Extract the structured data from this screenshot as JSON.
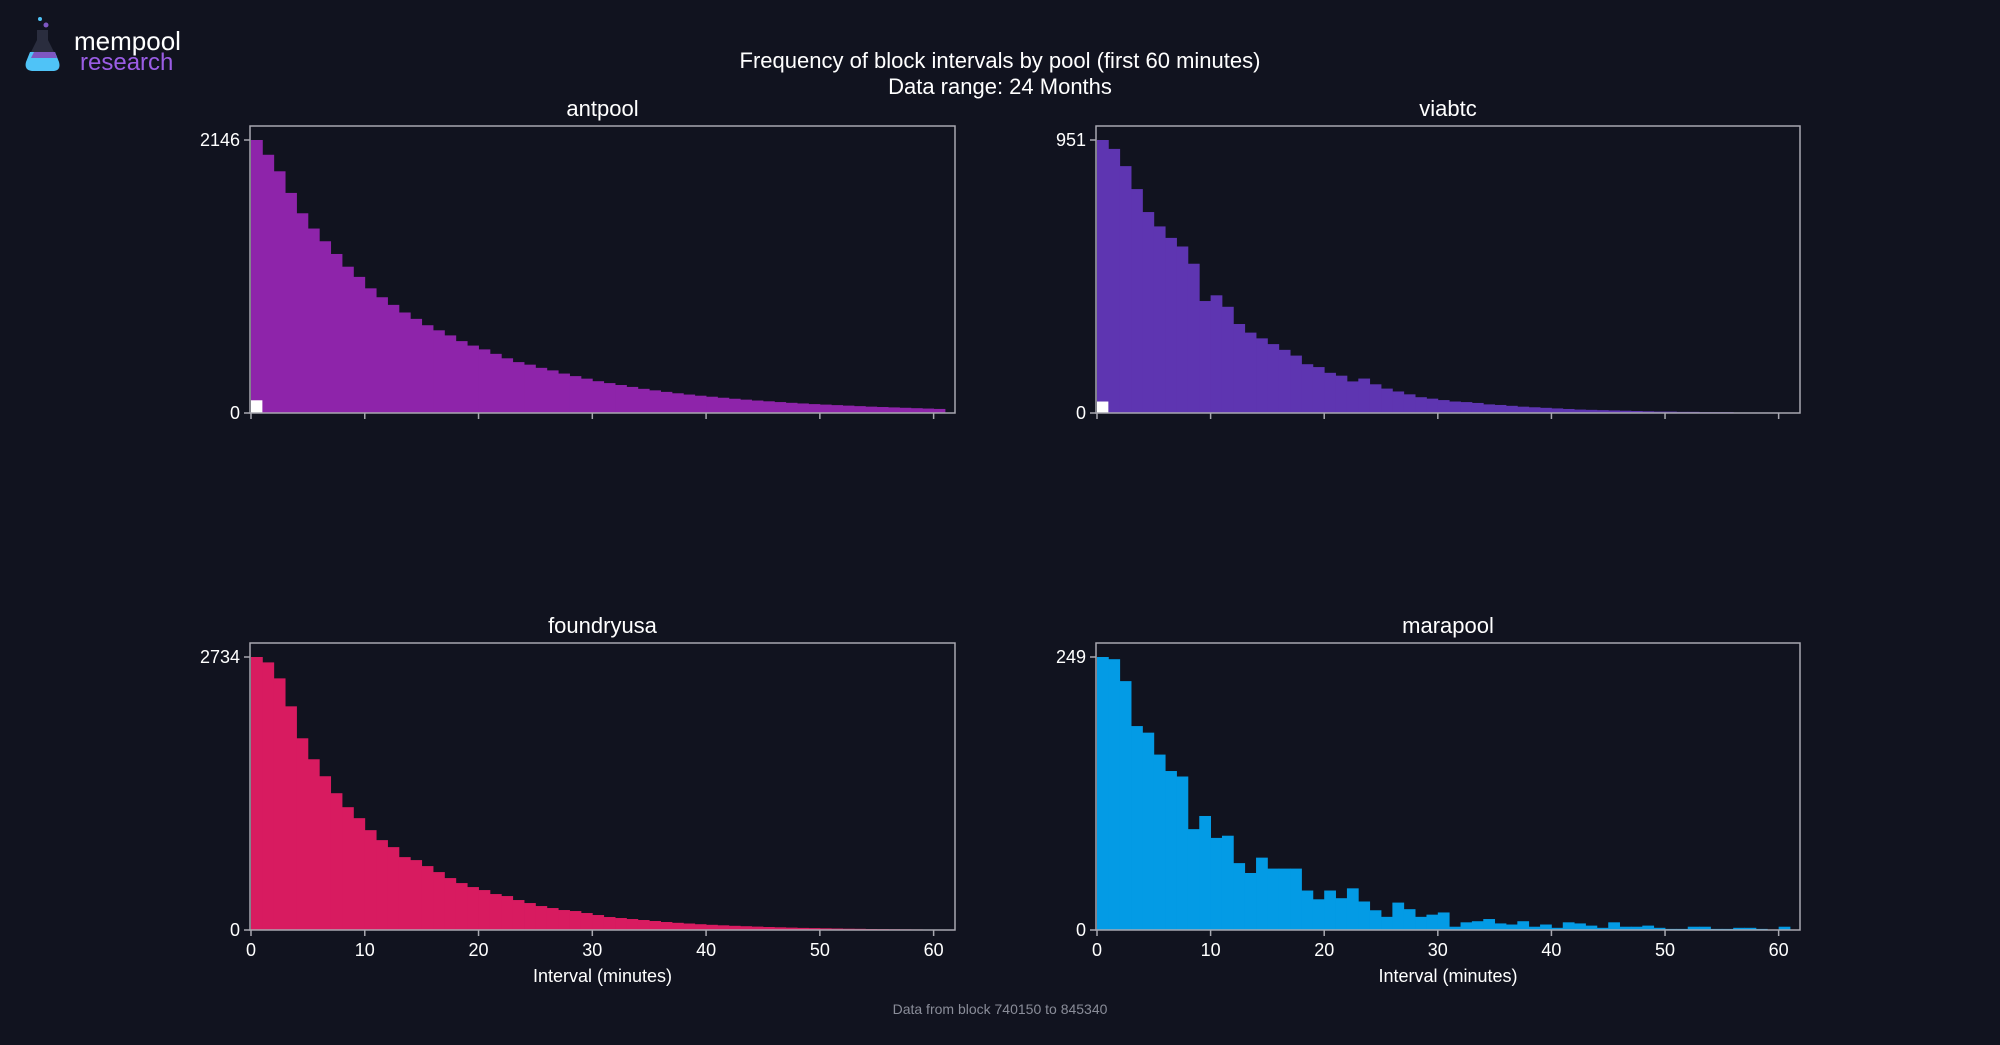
{
  "header": {
    "logo_line1": "mempool",
    "logo_line2": "research",
    "title_line1": "Frequency of block intervals by pool (first 60 minutes)",
    "title_line2": "Data range: 24 Months"
  },
  "footer": {
    "note": "Data from block 740150 to 845340"
  },
  "colors": {
    "background": "#11131f",
    "axes": "#a8a8b0",
    "marker": "#ffffff"
  },
  "chart_data": [
    {
      "type": "bar",
      "title": "antpool",
      "color": "#8e24aa",
      "xlabel": "",
      "xticks": [
        0,
        10,
        20,
        30,
        40,
        50,
        60
      ],
      "show_xtick_labels": false,
      "xlim": [
        0,
        61
      ],
      "ylim": [
        0,
        2146
      ],
      "yticks": [
        0,
        2146
      ],
      "bin_width_minutes": 1,
      "values": [
        2146,
        2030,
        1900,
        1730,
        1570,
        1450,
        1350,
        1250,
        1150,
        1070,
        980,
        910,
        850,
        790,
        740,
        690,
        650,
        610,
        565,
        530,
        500,
        465,
        430,
        400,
        380,
        355,
        335,
        310,
        290,
        270,
        250,
        235,
        220,
        205,
        190,
        178,
        166,
        155,
        145,
        136,
        128,
        120,
        112,
        105,
        98,
        92,
        86,
        80,
        75,
        70,
        66,
        62,
        58,
        54,
        50,
        47,
        44,
        41,
        38,
        35,
        32
      ],
      "marker_value": 100
    },
    {
      "type": "bar",
      "title": "viabtc",
      "color": "#5e35b1",
      "xlabel": "",
      "xticks": [
        0,
        10,
        20,
        30,
        40,
        50,
        60
      ],
      "show_xtick_labels": false,
      "xlim": [
        0,
        61
      ],
      "ylim": [
        0,
        951
      ],
      "yticks": [
        0,
        951
      ],
      "bin_width_minutes": 1,
      "values": [
        951,
        920,
        860,
        780,
        700,
        650,
        610,
        580,
        520,
        390,
        410,
        370,
        310,
        280,
        260,
        240,
        220,
        200,
        170,
        160,
        140,
        130,
        110,
        120,
        100,
        85,
        75,
        65,
        55,
        50,
        45,
        40,
        38,
        35,
        30,
        28,
        25,
        22,
        20,
        18,
        16,
        14,
        12,
        11,
        10,
        9,
        8,
        7,
        6,
        5,
        5,
        4,
        4,
        3,
        3,
        3,
        2,
        2,
        2,
        2,
        1
      ],
      "marker_value": 40
    },
    {
      "type": "bar",
      "title": "foundryusa",
      "color": "#d81b60",
      "xlabel": "Interval (minutes)",
      "xticks": [
        0,
        10,
        20,
        30,
        40,
        50,
        60
      ],
      "show_xtick_labels": true,
      "xlim": [
        0,
        61
      ],
      "ylim": [
        0,
        2734
      ],
      "yticks": [
        0,
        2734
      ],
      "bin_width_minutes": 1,
      "values": [
        2734,
        2680,
        2520,
        2240,
        1920,
        1710,
        1540,
        1370,
        1230,
        1120,
        1000,
        900,
        830,
        730,
        700,
        640,
        580,
        520,
        470,
        430,
        400,
        360,
        340,
        300,
        270,
        240,
        220,
        200,
        190,
        170,
        150,
        130,
        120,
        110,
        100,
        90,
        80,
        72,
        65,
        58,
        52,
        47,
        42,
        38,
        34,
        30,
        27,
        24,
        21,
        19,
        17,
        15,
        13,
        12,
        10,
        9,
        8,
        7,
        6,
        5,
        4
      ],
      "marker_value": 0
    },
    {
      "type": "bar",
      "title": "marapool",
      "color": "#039be5",
      "xlabel": "Interval (minutes)",
      "xticks": [
        0,
        10,
        20,
        30,
        40,
        50,
        60
      ],
      "show_xtick_labels": true,
      "xlim": [
        0,
        61
      ],
      "ylim": [
        0,
        249
      ],
      "yticks": [
        0,
        249
      ],
      "bin_width_minutes": 1,
      "values": [
        249,
        247,
        227,
        186,
        180,
        160,
        145,
        140,
        92,
        104,
        84,
        86,
        61,
        52,
        66,
        56,
        56,
        56,
        36,
        28,
        36,
        29,
        38,
        26,
        18,
        12,
        25,
        19,
        12,
        14,
        16,
        3,
        7,
        8,
        10,
        6,
        5,
        8,
        3,
        5,
        2,
        7,
        6,
        4,
        2,
        7,
        3,
        3,
        4,
        2,
        1,
        1,
        3,
        3,
        1,
        1,
        2,
        2,
        1,
        0,
        3
      ],
      "marker_value": 0
    }
  ]
}
